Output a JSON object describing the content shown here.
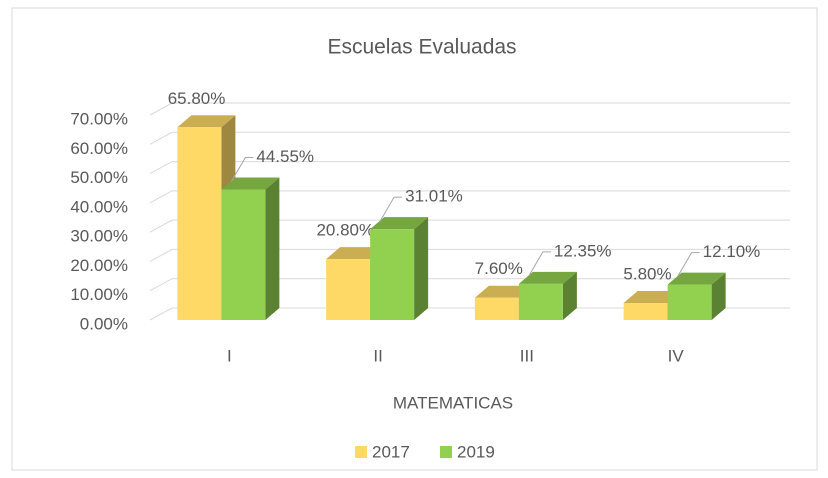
{
  "chart_data": {
    "type": "bar3d",
    "title": "Escuelas Evaluadas",
    "x_label": "MATEMATICAS",
    "categories": [
      "I",
      "II",
      "III",
      "IV"
    ],
    "series": [
      {
        "name": "2017",
        "color": "#ffd966",
        "values": [
          65.8,
          20.8,
          7.6,
          5.8
        ],
        "value_labels": [
          "65.80%",
          "20.80%",
          "7.60%",
          "5.80%"
        ]
      },
      {
        "name": "2019",
        "color": "#92d050",
        "values": [
          44.55,
          31.01,
          12.35,
          12.1
        ],
        "value_labels": [
          "44.55%",
          "31.01%",
          "12.35%",
          "12.10%"
        ]
      }
    ],
    "ylim": [
      0,
      70
    ],
    "yticks": [
      {
        "value": 0,
        "label": "0.00%"
      },
      {
        "value": 10,
        "label": "10.00%"
      },
      {
        "value": 20,
        "label": "20.00%"
      },
      {
        "value": 30,
        "label": "30.00%"
      },
      {
        "value": 40,
        "label": "40.00%"
      },
      {
        "value": 50,
        "label": "50.00%"
      },
      {
        "value": 60,
        "label": "60.00%"
      },
      {
        "value": 70,
        "label": "70.00%"
      }
    ],
    "grid": true,
    "legend": "bottom"
  }
}
